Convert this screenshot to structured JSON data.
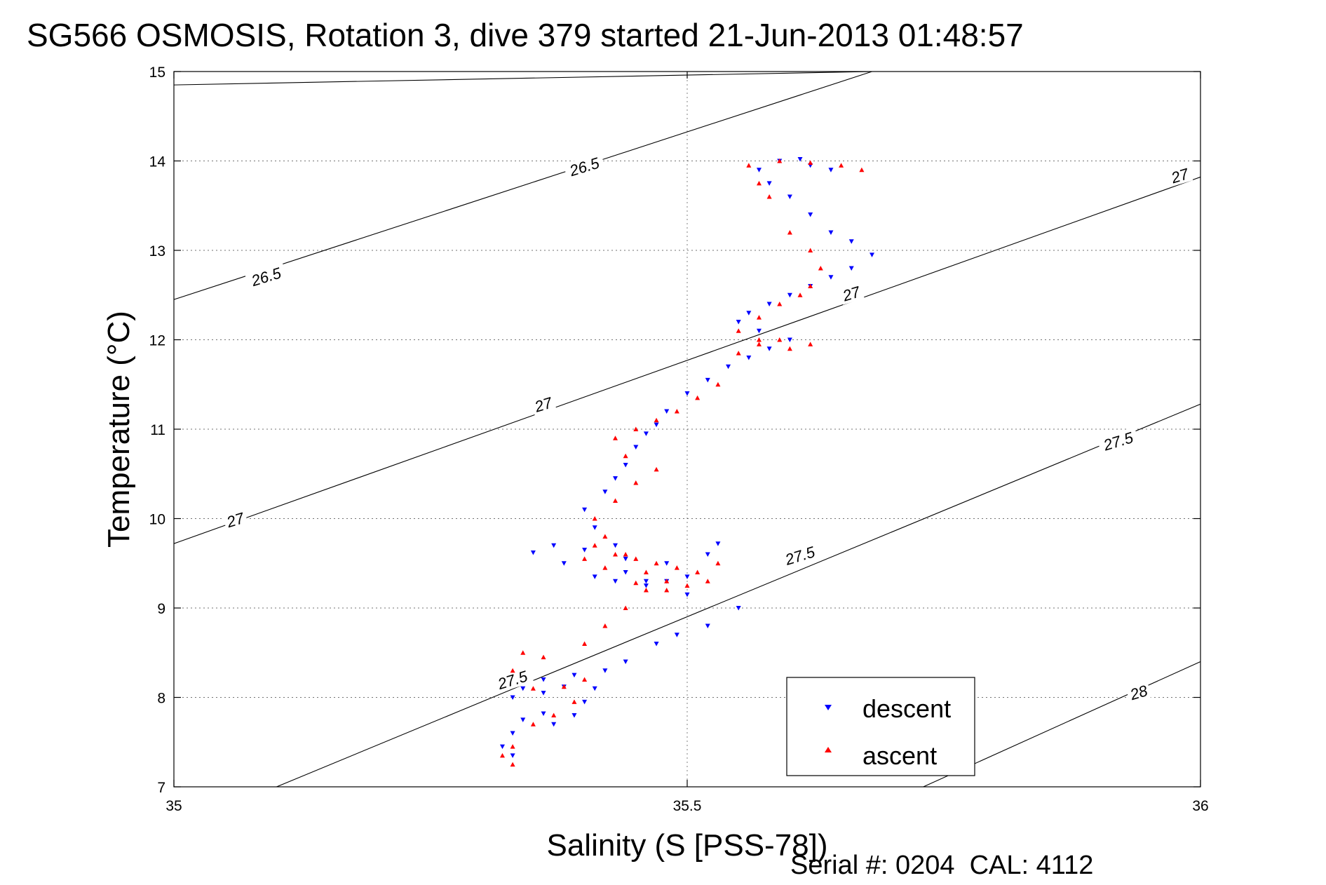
{
  "chart_data": {
    "type": "scatter",
    "title": "SG566 OSMOSIS, Rotation 3, dive 379 started 21-Jun-2013 01:48:57",
    "xlabel": "Salinity (S [PSS-78])",
    "ylabel": "Temperature (°C)",
    "xlim": [
      35,
      36
    ],
    "ylim": [
      7,
      15
    ],
    "xticks": [
      "35",
      "35.5",
      "36"
    ],
    "yticks": [
      "7",
      "8",
      "9",
      "10",
      "11",
      "12",
      "13",
      "14",
      "15"
    ],
    "grid": true,
    "legend_position": "bottom-right",
    "series": [
      {
        "name": "descent",
        "color": "#0000ff",
        "marker": "triangle-down",
        "x": [
          35.33,
          35.32,
          35.33,
          35.34,
          35.36,
          35.37,
          35.39,
          35.4,
          35.41,
          35.38,
          35.36,
          35.34,
          35.33,
          35.36,
          35.39,
          35.42,
          35.44,
          35.47,
          35.49,
          35.52,
          35.55,
          35.5,
          35.46,
          35.43,
          35.41,
          35.38,
          35.35,
          35.37,
          35.4,
          35.44,
          35.48,
          35.52,
          35.53,
          35.5,
          35.48,
          35.46,
          35.44,
          35.43,
          35.41,
          35.4,
          35.42,
          35.43,
          35.44,
          35.45,
          35.46,
          35.47,
          35.48,
          35.5,
          35.52,
          35.54,
          35.56,
          35.58,
          35.6,
          35.57,
          35.55,
          35.56,
          35.58,
          35.6,
          35.62,
          35.64,
          35.66,
          35.68,
          35.66,
          35.64,
          35.62,
          35.6,
          35.58,
          35.57,
          35.59,
          35.61,
          35.62,
          35.64
        ],
        "y": [
          7.35,
          7.45,
          7.6,
          7.75,
          7.82,
          7.7,
          7.8,
          7.95,
          8.1,
          8.12,
          8.05,
          8.1,
          8.0,
          8.2,
          8.25,
          8.3,
          8.4,
          8.6,
          8.7,
          8.8,
          9.0,
          9.15,
          9.25,
          9.3,
          9.35,
          9.5,
          9.62,
          9.7,
          9.65,
          9.55,
          9.5,
          9.6,
          9.72,
          9.35,
          9.3,
          9.3,
          9.4,
          9.7,
          9.9,
          10.1,
          10.3,
          10.45,
          10.6,
          10.8,
          10.95,
          11.05,
          11.2,
          11.4,
          11.55,
          11.7,
          11.8,
          11.9,
          12.0,
          12.1,
          12.2,
          12.3,
          12.4,
          12.5,
          12.6,
          12.7,
          12.8,
          12.95,
          13.1,
          13.2,
          13.4,
          13.6,
          13.75,
          13.9,
          14.0,
          14.02,
          13.95,
          13.9
        ]
      },
      {
        "name": "ascent",
        "color": "#ff0000",
        "marker": "triangle-up",
        "x": [
          35.33,
          35.32,
          35.33,
          35.35,
          35.37,
          35.39,
          35.4,
          35.38,
          35.35,
          35.33,
          35.34,
          35.36,
          35.4,
          35.42,
          35.44,
          35.46,
          35.48,
          35.45,
          35.42,
          35.4,
          35.41,
          35.43,
          35.45,
          35.47,
          35.49,
          35.51,
          35.53,
          35.52,
          35.5,
          35.48,
          35.46,
          35.44,
          35.42,
          35.41,
          35.43,
          35.45,
          35.47,
          35.44,
          35.43,
          35.45,
          35.47,
          35.49,
          35.51,
          35.53,
          35.55,
          35.57,
          35.59,
          35.6,
          35.62,
          35.57,
          35.55,
          35.57,
          35.59,
          35.61,
          35.62,
          35.63,
          35.62,
          35.6,
          35.58,
          35.57,
          35.56,
          35.59,
          35.62,
          35.65,
          35.67
        ],
        "y": [
          7.25,
          7.35,
          7.45,
          7.7,
          7.8,
          7.95,
          8.2,
          8.12,
          8.1,
          8.3,
          8.5,
          8.45,
          8.6,
          8.8,
          9.0,
          9.2,
          9.3,
          9.28,
          9.45,
          9.55,
          9.7,
          9.6,
          9.55,
          9.5,
          9.45,
          9.4,
          9.5,
          9.3,
          9.25,
          9.2,
          9.4,
          9.6,
          9.8,
          10.0,
          10.2,
          10.4,
          10.55,
          10.7,
          10.9,
          11.0,
          11.1,
          11.2,
          11.35,
          11.5,
          11.85,
          11.95,
          12.0,
          11.9,
          11.95,
          12.0,
          12.1,
          12.25,
          12.4,
          12.5,
          12.6,
          12.8,
          13.0,
          13.2,
          13.6,
          13.75,
          13.95,
          14.0,
          13.98,
          13.95,
          13.9
        ]
      }
    ],
    "contours": [
      {
        "label": "26.5",
        "x": [
          35.0,
          35.68
        ],
        "y": [
          14.85,
          15.0
        ]
      },
      {
        "label": "26.5",
        "x": [
          35.0,
          35.68
        ],
        "y": [
          12.45,
          15.0
        ]
      },
      {
        "label": "27",
        "x": [
          35.0,
          36.0
        ],
        "y": [
          9.72,
          13.82
        ]
      },
      {
        "label": "27.5",
        "x": [
          35.1,
          36.0
        ],
        "y": [
          7.0,
          11.28
        ]
      },
      {
        "label": "28",
        "x": [
          35.73,
          36.0
        ],
        "y": [
          7.0,
          8.4
        ]
      }
    ],
    "contour_labels": [
      {
        "text": "26.5",
        "x": 35.4,
        "y": 13.93
      },
      {
        "text": "26.5",
        "x": 35.09,
        "y": 12.7
      },
      {
        "text": "27",
        "x": 35.66,
        "y": 12.51
      },
      {
        "text": "27",
        "x": 35.36,
        "y": 11.27
      },
      {
        "text": "27",
        "x": 35.06,
        "y": 9.98
      },
      {
        "text": "27",
        "x": 35.98,
        "y": 13.83
      },
      {
        "text": "27.5",
        "x": 35.61,
        "y": 9.58
      },
      {
        "text": "27.5",
        "x": 35.33,
        "y": 8.19
      },
      {
        "text": "27.5",
        "x": 35.92,
        "y": 10.86
      },
      {
        "text": "28",
        "x": 35.94,
        "y": 8.05
      }
    ],
    "legend": [
      "descent",
      "ascent"
    ],
    "annotation": "Serial #: 0204  CAL: 4112"
  }
}
